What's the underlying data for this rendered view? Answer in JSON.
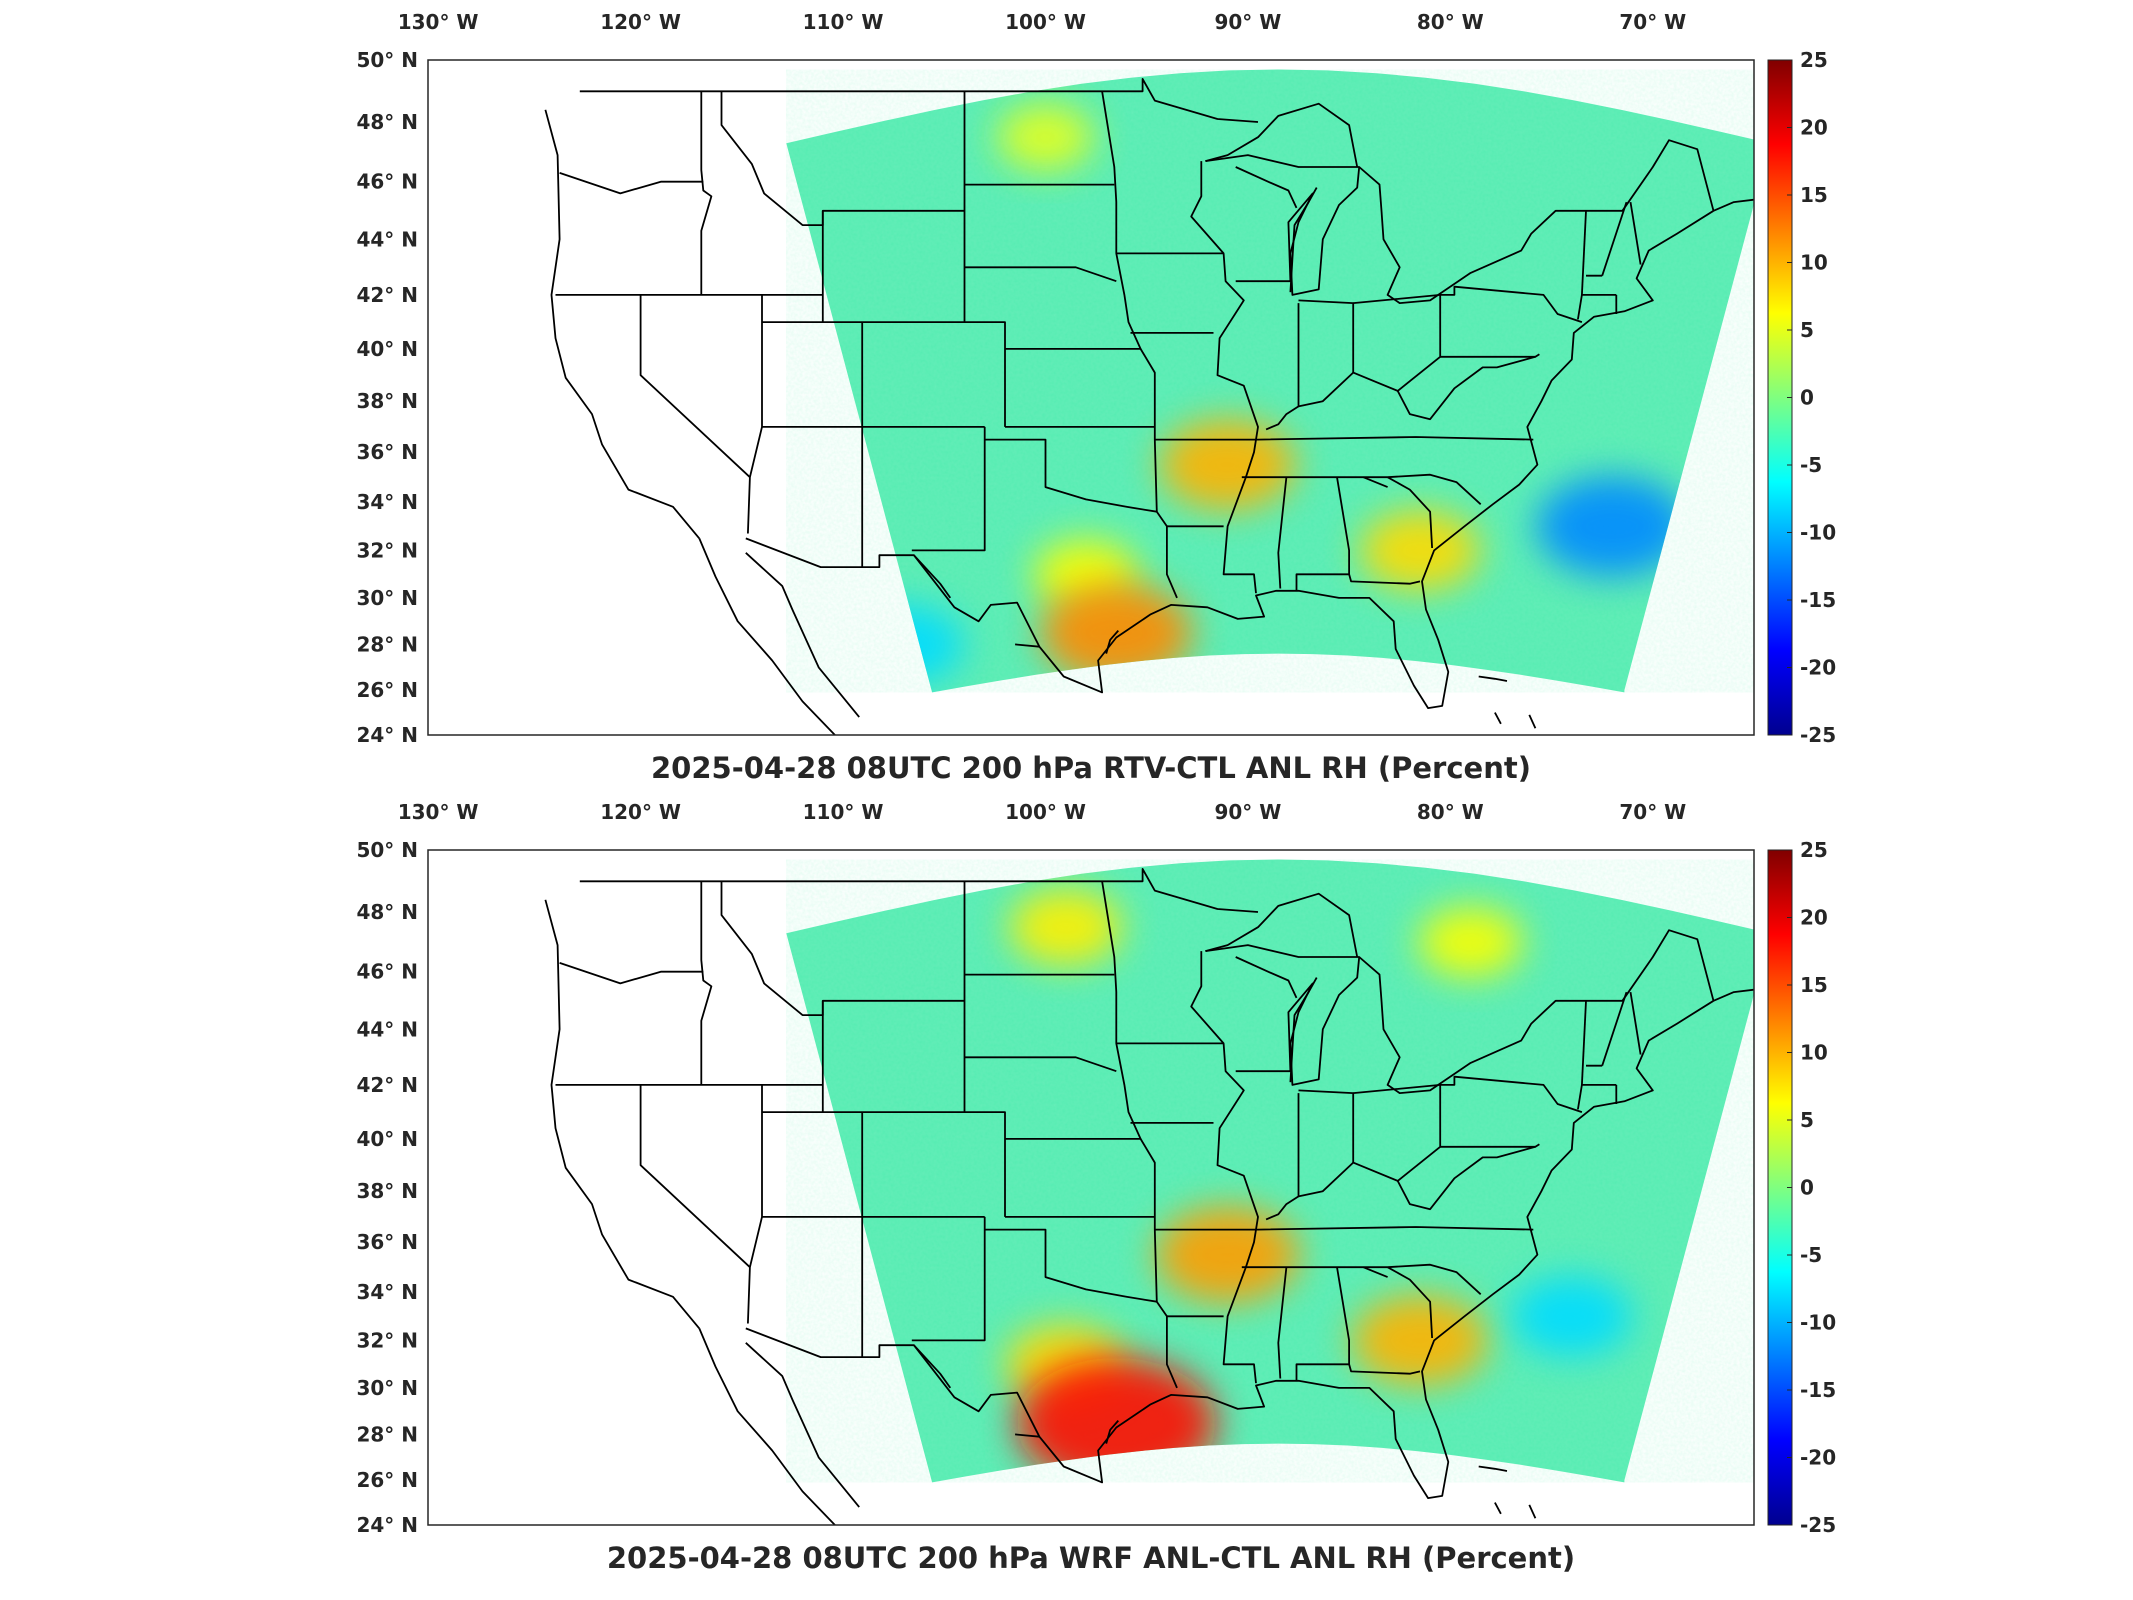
{
  "panels": [
    {
      "id": "top",
      "title": "2025-04-28 08UTC 200 hPa RTV-CTL ANL RH (Percent)",
      "hotspots": [
        {
          "name": "texas-warm",
          "lon": -98,
          "lat": 31,
          "value": 6
        },
        {
          "name": "houston-coast",
          "lon": -96.5,
          "lat": 28.5,
          "value": 12
        },
        {
          "name": "arkansas",
          "lon": -91,
          "lat": 35.5,
          "value": 10
        },
        {
          "name": "georgia-coast",
          "lon": -81.5,
          "lat": 32,
          "value": 8
        },
        {
          "name": "dakotas",
          "lon": -100,
          "lat": 47.5,
          "value": 5
        },
        {
          "name": "atlantic-dry",
          "lon": -72,
          "lat": 33,
          "value": -12
        },
        {
          "name": "mexico-dry",
          "lon": -107,
          "lat": 28,
          "value": -8
        }
      ]
    },
    {
      "id": "bottom",
      "title": "2025-04-28 08UTC 200 hPa WRF ANL-CTL ANL RH (Percent)",
      "hotspots": [
        {
          "name": "texas-warm",
          "lon": -99,
          "lat": 31,
          "value": 8
        },
        {
          "name": "houston-coast",
          "lon": -96.5,
          "lat": 28.5,
          "value": 18
        },
        {
          "name": "arkansas",
          "lon": -91,
          "lat": 35.5,
          "value": 11
        },
        {
          "name": "georgia-coast",
          "lon": -81.5,
          "lat": 32,
          "value": 10
        },
        {
          "name": "dakotas",
          "lon": -99,
          "lat": 47.5,
          "value": 7
        },
        {
          "name": "atlantic-dry",
          "lon": -74,
          "lat": 33,
          "value": -8
        },
        {
          "name": "appalachian",
          "lon": -79,
          "lat": 47,
          "value": 6
        }
      ]
    }
  ],
  "map": {
    "lon_ticks": [
      "130° W",
      "120° W",
      "110° W",
      "100° W",
      "90° W",
      "80° W",
      "70° W"
    ],
    "lat_ticks": [
      "50° N",
      "48° N",
      "46° N",
      "44° N",
      "42° N",
      "40° N",
      "38° N",
      "36° N",
      "34° N",
      "32° N",
      "30° N",
      "28° N",
      "26° N",
      "24° N"
    ],
    "lon_range": [
      -130.5,
      -65
    ],
    "lat_range": [
      24,
      50
    ]
  },
  "colorbar": {
    "ticks": [
      "25",
      "20",
      "15",
      "10",
      "5",
      "0",
      "-5",
      "-10",
      "-15",
      "-20",
      "-25"
    ],
    "range": [
      -25,
      25
    ],
    "colormap": "jet"
  },
  "colors": {
    "background_field": "#55ecb2",
    "boundary": "#000000",
    "jet_dark_blue": "#00008f",
    "jet_dark_red": "#800000"
  }
}
